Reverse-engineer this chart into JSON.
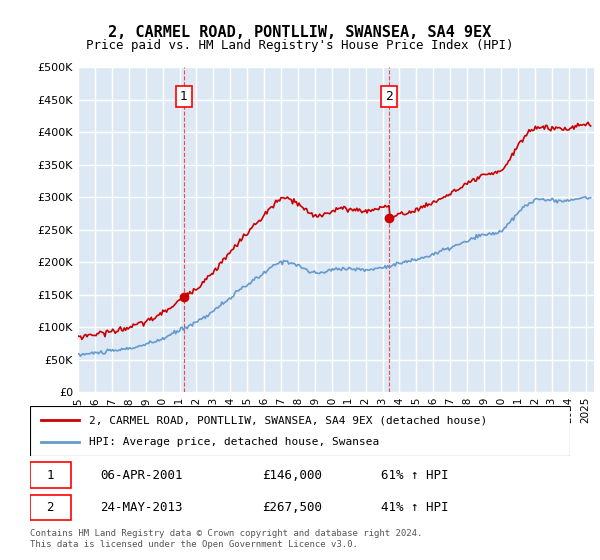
{
  "title": "2, CARMEL ROAD, PONTLLIW, SWANSEA, SA4 9EX",
  "subtitle": "Price paid vs. HM Land Registry's House Price Index (HPI)",
  "ylim": [
    0,
    500000
  ],
  "yticks": [
    0,
    50000,
    100000,
    150000,
    200000,
    250000,
    300000,
    350000,
    400000,
    450000,
    500000
  ],
  "xlim_start": 1995.0,
  "xlim_end": 2025.5,
  "background_color": "#dce9f5",
  "plot_bg_color": "#dce9f5",
  "grid_color": "#ffffff",
  "sale1_date": 2001.27,
  "sale1_price": 146000,
  "sale1_label": "1",
  "sale2_date": 2013.39,
  "sale2_price": 267500,
  "sale2_label": "2",
  "hpi_color": "#6699cc",
  "price_color": "#cc0000",
  "legend_label_price": "2, CARMEL ROAD, PONTLLIW, SWANSEA, SA4 9EX (detached house)",
  "legend_label_hpi": "HPI: Average price, detached house, Swansea",
  "table_row1": [
    "1",
    "06-APR-2001",
    "£146,000",
    "61% ↑ HPI"
  ],
  "table_row2": [
    "2",
    "24-MAY-2013",
    "£267,500",
    "41% ↑ HPI"
  ],
  "footer": "Contains HM Land Registry data © Crown copyright and database right 2024.\nThis data is licensed under the Open Government Licence v3.0.",
  "xtick_years": [
    1995,
    1996,
    1997,
    1998,
    1999,
    2000,
    2001,
    2002,
    2003,
    2004,
    2005,
    2006,
    2007,
    2008,
    2009,
    2010,
    2011,
    2012,
    2013,
    2014,
    2015,
    2016,
    2017,
    2018,
    2019,
    2020,
    2021,
    2022,
    2023,
    2024,
    2025
  ]
}
